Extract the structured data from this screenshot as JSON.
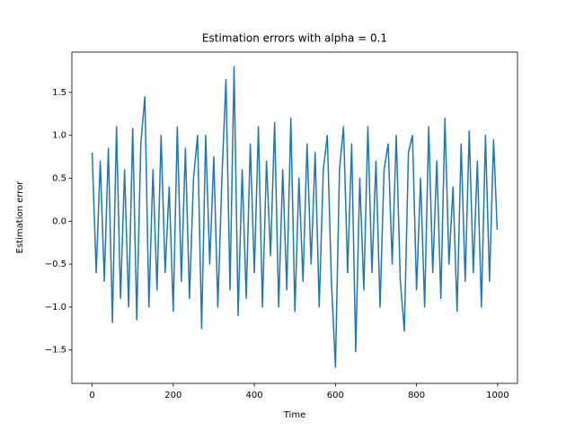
{
  "chart_data": {
    "type": "line",
    "title": "Estimation errors with alpha = 0.1",
    "xlabel": "Time",
    "ylabel": "Estimation error",
    "x": [
      0,
      10,
      20,
      30,
      40,
      50,
      60,
      70,
      80,
      90,
      100,
      110,
      120,
      130,
      140,
      150,
      160,
      170,
      180,
      190,
      200,
      210,
      220,
      230,
      240,
      250,
      260,
      270,
      280,
      290,
      300,
      310,
      320,
      330,
      340,
      350,
      360,
      370,
      380,
      390,
      400,
      410,
      420,
      430,
      440,
      450,
      460,
      470,
      480,
      490,
      500,
      510,
      520,
      530,
      540,
      550,
      560,
      570,
      580,
      590,
      600,
      610,
      620,
      630,
      640,
      650,
      660,
      670,
      680,
      690,
      700,
      710,
      720,
      730,
      740,
      750,
      760,
      770,
      780,
      790,
      800,
      810,
      820,
      830,
      840,
      850,
      860,
      870,
      880,
      890,
      900,
      910,
      920,
      930,
      940,
      950,
      960,
      970,
      980,
      990,
      999
    ],
    "series": [
      {
        "name": "Estimation error",
        "color": "#1f77b4",
        "values": [
          0.8,
          -0.6,
          0.7,
          -0.7,
          0.85,
          -1.18,
          1.1,
          -0.9,
          0.6,
          -1.0,
          1.08,
          -1.15,
          0.9,
          1.45,
          -1.0,
          0.6,
          -0.8,
          1.0,
          -0.6,
          0.4,
          -1.05,
          1.1,
          -0.7,
          0.85,
          -0.9,
          0.5,
          1.0,
          -1.25,
          1.0,
          -0.5,
          0.75,
          -1.0,
          0.5,
          1.65,
          -0.8,
          1.8,
          -1.1,
          0.6,
          -0.9,
          0.9,
          -0.6,
          1.1,
          -1.0,
          0.7,
          -0.4,
          1.15,
          -1.0,
          0.6,
          -0.8,
          1.2,
          -1.05,
          0.5,
          -0.7,
          0.9,
          -0.5,
          0.8,
          -1.0,
          0.6,
          1.0,
          -0.7,
          -1.7,
          0.6,
          1.1,
          -0.6,
          0.9,
          -1.52,
          0.5,
          -0.8,
          1.1,
          -0.6,
          0.7,
          -1.0,
          0.6,
          0.9,
          -0.5,
          1.0,
          -0.7,
          -1.28,
          0.8,
          1.0,
          -0.8,
          0.5,
          -1.0,
          1.1,
          -0.6,
          0.7,
          -0.9,
          1.2,
          -0.5,
          0.4,
          -1.05,
          0.9,
          -0.7,
          1.05,
          -0.6,
          0.7,
          -1.0,
          1.0,
          -0.7,
          0.95,
          -0.1
        ]
      }
    ],
    "xlim": [
      -50,
      1049
    ],
    "ylim": [
      -1.89,
      1.97
    ],
    "xticks": [
      0,
      200,
      400,
      600,
      800,
      1000
    ],
    "yticks": [
      {
        "value": -1.5,
        "label": "−1.5"
      },
      {
        "value": -1.0,
        "label": "−1.0"
      },
      {
        "value": -0.5,
        "label": "−0.5"
      },
      {
        "value": 0,
        "label": "0.0"
      },
      0.5,
      {
        "value": 1.0,
        "label": "1.0"
      },
      1.5
    ]
  }
}
